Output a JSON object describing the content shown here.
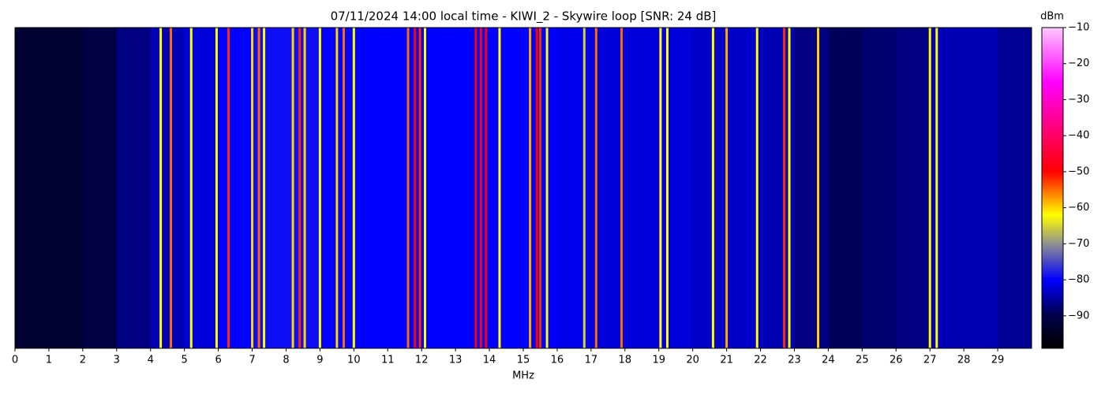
{
  "chart_data": {
    "type": "spectrogram",
    "title": "07/11/2024 14:00 local time - KIWI_2 - Skywire loop [SNR: 24 dB]",
    "x_label": "MHz",
    "colorbar_label": "dBm",
    "xlim": [
      0,
      30
    ],
    "xticks": [
      0,
      1,
      2,
      3,
      4,
      5,
      6,
      7,
      8,
      9,
      10,
      11,
      12,
      13,
      14,
      15,
      16,
      17,
      18,
      19,
      20,
      21,
      22,
      23,
      24,
      25,
      26,
      27,
      28,
      29
    ],
    "clim": [
      -99,
      -10
    ],
    "cticks": [
      {
        "value": -10,
        "label": "−10"
      },
      {
        "value": -20,
        "label": "−20"
      },
      {
        "value": -30,
        "label": "−30"
      },
      {
        "value": -40,
        "label": "−40"
      },
      {
        "value": -50,
        "label": "−50"
      },
      {
        "value": -60,
        "label": "−60"
      },
      {
        "value": -70,
        "label": "−70"
      },
      {
        "value": -80,
        "label": "−80"
      },
      {
        "value": -90,
        "label": "−90"
      }
    ],
    "colormap": [
      {
        "value": -99,
        "color": "#000000"
      },
      {
        "value": -90,
        "color": "#00004a"
      },
      {
        "value": -80,
        "color": "#0000ff"
      },
      {
        "value": -70,
        "color": "#909090"
      },
      {
        "value": -62,
        "color": "#ffff00"
      },
      {
        "value": -50,
        "color": "#ff0000"
      },
      {
        "value": -25,
        "color": "#ff00ff"
      },
      {
        "value": -10,
        "color": "#ffc8ff"
      }
    ],
    "noise_floor": {
      "bins": [
        0,
        1,
        2,
        3,
        4,
        5,
        6,
        7,
        8,
        9,
        10,
        11,
        12,
        13,
        14,
        15,
        16,
        17,
        18,
        19,
        20,
        21,
        22,
        23,
        24,
        25,
        26,
        27,
        28,
        29,
        30
      ],
      "values": [
        -93,
        -93,
        -91,
        -87,
        -84,
        -82,
        -80,
        -79,
        -79,
        -80,
        -80,
        -80,
        -80,
        -80,
        -80,
        -80,
        -81,
        -82,
        -82,
        -82,
        -83,
        -83,
        -84,
        -87,
        -89,
        -88,
        -87,
        -84,
        -84,
        -86
      ]
    },
    "signals": [
      {
        "freq": 4.3,
        "level": -62
      },
      {
        "freq": 4.6,
        "level": -55
      },
      {
        "freq": 5.2,
        "level": -62
      },
      {
        "freq": 5.95,
        "level": -62
      },
      {
        "freq": 6.3,
        "level": -52
      },
      {
        "freq": 7.0,
        "level": -60
      },
      {
        "freq": 7.2,
        "level": -55
      },
      {
        "freq": 7.35,
        "level": -62
      },
      {
        "freq": 8.2,
        "level": -60
      },
      {
        "freq": 8.4,
        "level": -52
      },
      {
        "freq": 8.55,
        "level": -60
      },
      {
        "freq": 9.0,
        "level": -62
      },
      {
        "freq": 9.5,
        "level": -60
      },
      {
        "freq": 9.7,
        "level": -55
      },
      {
        "freq": 10.0,
        "level": -62
      },
      {
        "freq": 11.6,
        "level": -55
      },
      {
        "freq": 11.8,
        "level": -50
      },
      {
        "freq": 11.95,
        "level": -52
      },
      {
        "freq": 12.1,
        "level": -62
      },
      {
        "freq": 13.6,
        "level": -50
      },
      {
        "freq": 13.75,
        "level": -48
      },
      {
        "freq": 13.9,
        "level": -50
      },
      {
        "freq": 14.3,
        "level": -62
      },
      {
        "freq": 15.2,
        "level": -58
      },
      {
        "freq": 15.4,
        "level": -50
      },
      {
        "freq": 15.5,
        "level": -52
      },
      {
        "freq": 15.7,
        "level": -62
      },
      {
        "freq": 16.8,
        "level": -65
      },
      {
        "freq": 17.15,
        "level": -55
      },
      {
        "freq": 17.9,
        "level": -55
      },
      {
        "freq": 19.05,
        "level": -62
      },
      {
        "freq": 19.25,
        "level": -62
      },
      {
        "freq": 20.6,
        "level": -62
      },
      {
        "freq": 21.0,
        "level": -58
      },
      {
        "freq": 21.9,
        "level": -62
      },
      {
        "freq": 22.7,
        "level": -52
      },
      {
        "freq": 22.85,
        "level": -62
      },
      {
        "freq": 23.7,
        "level": -60
      },
      {
        "freq": 27.0,
        "level": -62
      },
      {
        "freq": 27.2,
        "level": -62
      }
    ]
  }
}
